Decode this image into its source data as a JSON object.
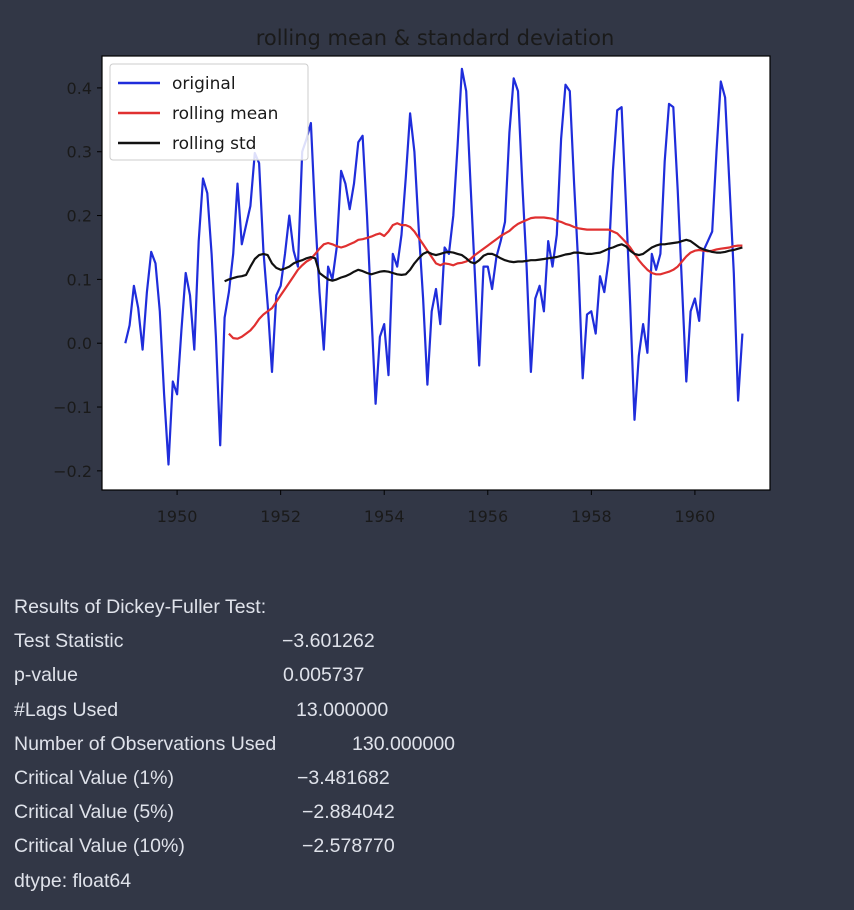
{
  "chart_data": {
    "type": "line",
    "title": "rolling mean & standard deviation",
    "xlabel": "",
    "ylabel": "",
    "xlim": [
      1948.55,
      1961.45
    ],
    "ylim": [
      -0.23,
      0.45
    ],
    "x_ticks": [
      "1950",
      "1952",
      "1954",
      "1956",
      "1958",
      "1960"
    ],
    "y_ticks": [
      "0.4",
      "0.3",
      "0.2",
      "0.1",
      "0.0",
      "−0.1",
      "−0.2"
    ],
    "legend": {
      "location": "upper left",
      "entries": [
        "original",
        "rolling mean",
        "rolling std"
      ]
    },
    "grid": false,
    "x_start": 1949.0,
    "x_step_months": 1,
    "series": [
      {
        "name": "original",
        "color": "#1f2ddb",
        "values": [
          0.0,
          0.028,
          0.09,
          0.055,
          -0.01,
          0.08,
          0.143,
          0.125,
          0.05,
          -0.08,
          -0.19,
          -0.06,
          -0.08,
          0.02,
          0.11,
          0.075,
          -0.01,
          0.16,
          0.258,
          0.235,
          0.14,
          0.01,
          -0.16,
          0.04,
          0.08,
          0.14,
          0.25,
          0.155,
          0.185,
          0.215,
          0.298,
          0.282,
          0.145,
          0.06,
          -0.045,
          0.075,
          0.09,
          0.14,
          0.2,
          0.145,
          0.12,
          0.3,
          0.32,
          0.345,
          0.2,
          0.08,
          -0.01,
          0.12,
          0.1,
          0.15,
          0.27,
          0.25,
          0.21,
          0.25,
          0.315,
          0.325,
          0.2,
          0.05,
          -0.095,
          0.01,
          0.03,
          -0.05,
          0.14,
          0.12,
          0.17,
          0.26,
          0.36,
          0.3,
          0.18,
          0.07,
          -0.065,
          0.05,
          0.085,
          0.03,
          0.15,
          0.14,
          0.2,
          0.31,
          0.43,
          0.395,
          0.25,
          0.11,
          -0.035,
          0.12,
          0.12,
          0.085,
          0.135,
          0.16,
          0.19,
          0.33,
          0.415,
          0.395,
          0.25,
          0.12,
          -0.045,
          0.07,
          0.09,
          0.05,
          0.16,
          0.12,
          0.17,
          0.32,
          0.405,
          0.395,
          0.25,
          0.12,
          -0.055,
          0.045,
          0.05,
          0.015,
          0.105,
          0.08,
          0.13,
          0.27,
          0.365,
          0.37,
          0.22,
          0.06,
          -0.12,
          -0.02,
          0.03,
          -0.015,
          0.14,
          0.115,
          0.14,
          0.285,
          0.375,
          0.37,
          0.24,
          0.09,
          -0.06,
          0.05,
          0.07,
          0.035,
          0.145,
          0.16,
          0.175,
          0.3,
          0.41,
          0.385,
          0.25,
          0.11,
          -0.09,
          0.015
        ]
      },
      {
        "name": "rolling mean",
        "color": "#e03030",
        "values": [
          0.015,
          0.008,
          0.007,
          0.01,
          0.015,
          0.02,
          0.028,
          0.038,
          0.045,
          0.05,
          0.055,
          0.065,
          0.075,
          0.085,
          0.095,
          0.105,
          0.115,
          0.122,
          0.128,
          0.132,
          0.14,
          0.148,
          0.155,
          0.157,
          0.155,
          0.152,
          0.15,
          0.152,
          0.155,
          0.158,
          0.162,
          0.163,
          0.165,
          0.167,
          0.17,
          0.172,
          0.168,
          0.175,
          0.185,
          0.188,
          0.185,
          0.185,
          0.182,
          0.175,
          0.165,
          0.155,
          0.145,
          0.135,
          0.125,
          0.122,
          0.125,
          0.124,
          0.122,
          0.125,
          0.126,
          0.128,
          0.132,
          0.138,
          0.143,
          0.148,
          0.153,
          0.158,
          0.163,
          0.168,
          0.172,
          0.176,
          0.182,
          0.187,
          0.19,
          0.193,
          0.196,
          0.197,
          0.197,
          0.197,
          0.196,
          0.195,
          0.192,
          0.19,
          0.187,
          0.185,
          0.182,
          0.18,
          0.179,
          0.178,
          0.178,
          0.178,
          0.178,
          0.178,
          0.178,
          0.175,
          0.172,
          0.165,
          0.158,
          0.15,
          0.14,
          0.13,
          0.122,
          0.115,
          0.11,
          0.108,
          0.108,
          0.11,
          0.112,
          0.115,
          0.12,
          0.128,
          0.136,
          0.142,
          0.145,
          0.146,
          0.145,
          0.144,
          0.145,
          0.147,
          0.148,
          0.149,
          0.15,
          0.152,
          0.153,
          0.153
        ]
      },
      {
        "name": "rolling std",
        "color": "#111111",
        "values": [
          0.097,
          0.1,
          0.102,
          0.104,
          0.105,
          0.107,
          0.12,
          0.132,
          0.138,
          0.14,
          0.138,
          0.125,
          0.118,
          0.115,
          0.117,
          0.12,
          0.125,
          0.128,
          0.13,
          0.133,
          0.135,
          0.133,
          0.11,
          0.105,
          0.1,
          0.098,
          0.1,
          0.103,
          0.105,
          0.108,
          0.112,
          0.115,
          0.113,
          0.11,
          0.108,
          0.11,
          0.112,
          0.113,
          0.112,
          0.11,
          0.108,
          0.107,
          0.108,
          0.115,
          0.125,
          0.133,
          0.14,
          0.143,
          0.14,
          0.138,
          0.14,
          0.142,
          0.143,
          0.142,
          0.14,
          0.138,
          0.133,
          0.127,
          0.125,
          0.13,
          0.137,
          0.14,
          0.14,
          0.137,
          0.133,
          0.13,
          0.128,
          0.127,
          0.128,
          0.128,
          0.129,
          0.13,
          0.13,
          0.131,
          0.132,
          0.133,
          0.134,
          0.135,
          0.137,
          0.139,
          0.14,
          0.142,
          0.142,
          0.141,
          0.14,
          0.14,
          0.141,
          0.142,
          0.145,
          0.148,
          0.15,
          0.153,
          0.155,
          0.152,
          0.145,
          0.14,
          0.138,
          0.14,
          0.145,
          0.15,
          0.153,
          0.155,
          0.155,
          0.156,
          0.157,
          0.158,
          0.16,
          0.162,
          0.16,
          0.155,
          0.15,
          0.147,
          0.145,
          0.143,
          0.142,
          0.142,
          0.143,
          0.145,
          0.146,
          0.148,
          0.15
        ]
      }
    ]
  },
  "dickey_fuller": {
    "header": "Results of Dickey-Fuller Test:",
    "rows": [
      {
        "label": "Test Statistic",
        "value": "−3.601262"
      },
      {
        "label": "p-value",
        "value": "0.005737"
      },
      {
        "label": "#Lags Used",
        "value": "13.000000"
      },
      {
        "label": "Number of Observations Used",
        "value": "130.000000"
      },
      {
        "label": "Critical Value (1%)",
        "value": "−3.481682"
      },
      {
        "label": "Critical Value (5%)",
        "value": "−2.884042"
      },
      {
        "label": "Critical Value (10%)",
        "value": "−2.578770"
      }
    ],
    "dtype": "dtype: float64"
  }
}
